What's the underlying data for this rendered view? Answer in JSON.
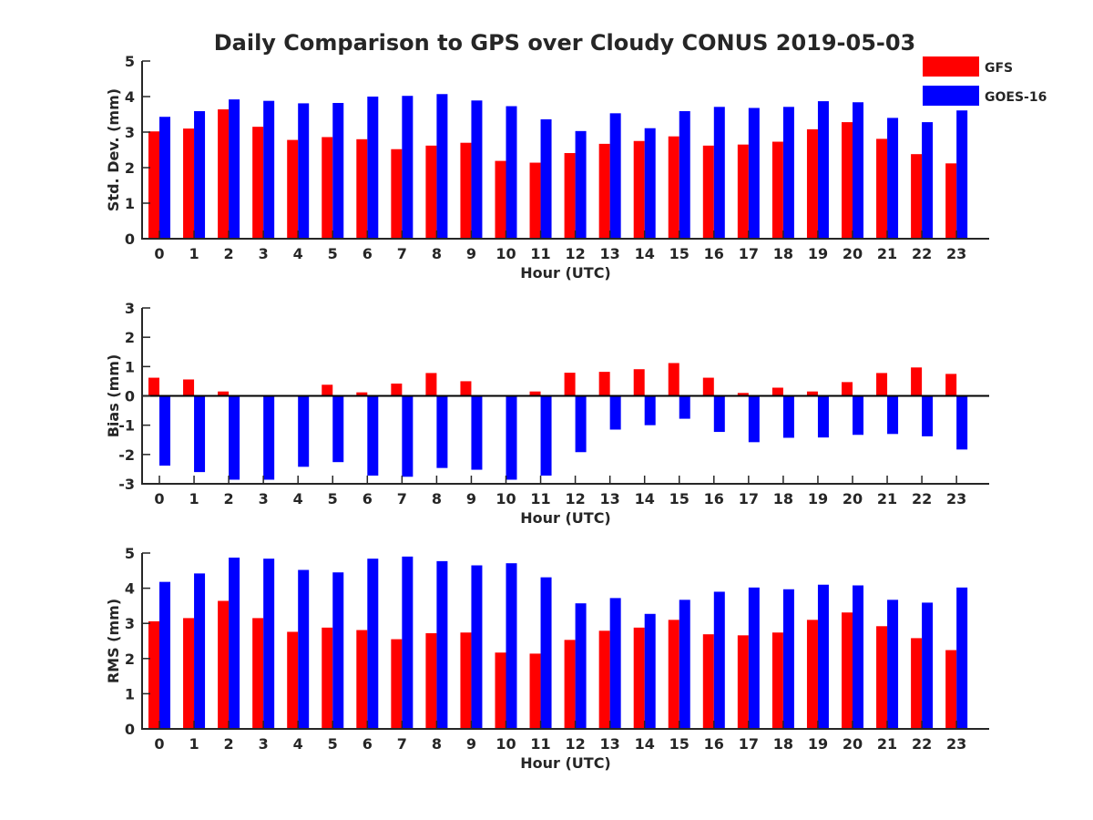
{
  "title": "Daily Comparison to GPS over Cloudy CONUS 2019-05-03",
  "legend": {
    "placement": "top-right",
    "items": [
      {
        "label": "GFS",
        "color": "#ff0000"
      },
      {
        "label": "GOES-16",
        "color": "#0000ff"
      }
    ]
  },
  "chart_data": [
    {
      "type": "bar",
      "xlabel": "Hour (UTC)",
      "ylabel": "Std. Dev. (mm)",
      "ylim": [
        0,
        5
      ],
      "yticks": [
        "0",
        "1",
        "2",
        "3",
        "4",
        "5"
      ],
      "categories": [
        "0",
        "1",
        "2",
        "3",
        "4",
        "5",
        "6",
        "7",
        "8",
        "9",
        "10",
        "11",
        "12",
        "13",
        "14",
        "15",
        "16",
        "17",
        "18",
        "19",
        "20",
        "21",
        "22",
        "23"
      ],
      "series": [
        {
          "name": "GFS",
          "color": "#ff0000",
          "values": [
            3.02,
            3.1,
            3.64,
            3.15,
            2.78,
            2.86,
            2.8,
            2.52,
            2.62,
            2.7,
            2.19,
            2.14,
            2.41,
            2.67,
            2.75,
            2.88,
            2.62,
            2.65,
            2.73,
            3.08,
            3.28,
            2.81,
            2.38,
            2.12
          ]
        },
        {
          "name": "GOES-16",
          "color": "#0000ff",
          "values": [
            3.43,
            3.59,
            3.92,
            3.88,
            3.81,
            3.82,
            4.0,
            4.02,
            4.07,
            3.89,
            3.73,
            3.36,
            3.03,
            3.53,
            3.11,
            3.59,
            3.71,
            3.68,
            3.71,
            3.87,
            3.84,
            3.4,
            3.28,
            3.61
          ]
        }
      ]
    },
    {
      "type": "bar",
      "xlabel": "Hour (UTC)",
      "ylabel": "Bias (mm)",
      "ylim": [
        -3,
        3
      ],
      "yticks": [
        "-3",
        "-2",
        "-1",
        "0",
        "1",
        "2",
        "3"
      ],
      "categories": [
        "0",
        "1",
        "2",
        "3",
        "4",
        "5",
        "6",
        "7",
        "8",
        "9",
        "10",
        "11",
        "12",
        "13",
        "14",
        "15",
        "16",
        "17",
        "18",
        "19",
        "20",
        "21",
        "22",
        "23"
      ],
      "series": [
        {
          "name": "GFS",
          "color": "#ff0000",
          "values": [
            0.62,
            0.56,
            0.15,
            0.0,
            0.0,
            0.38,
            0.12,
            0.42,
            0.78,
            0.5,
            0.0,
            0.15,
            0.79,
            0.82,
            0.91,
            1.12,
            0.62,
            0.1,
            0.28,
            0.15,
            0.47,
            0.78,
            0.97,
            0.75
          ]
        },
        {
          "name": "GOES-16",
          "color": "#0000ff",
          "values": [
            -2.38,
            -2.6,
            -2.86,
            -2.86,
            -2.42,
            -2.26,
            -2.72,
            -2.76,
            -2.46,
            -2.52,
            -2.86,
            -2.72,
            -1.92,
            -1.15,
            -1.0,
            -0.78,
            -1.23,
            -1.58,
            -1.43,
            -1.42,
            -1.33,
            -1.3,
            -1.38,
            -1.83
          ]
        }
      ]
    },
    {
      "type": "bar",
      "xlabel": "Hour (UTC)",
      "ylabel": "RMS (mm)",
      "ylim": [
        0,
        5
      ],
      "yticks": [
        "0",
        "1",
        "2",
        "3",
        "4",
        "5"
      ],
      "categories": [
        "0",
        "1",
        "2",
        "3",
        "4",
        "5",
        "6",
        "7",
        "8",
        "9",
        "10",
        "11",
        "12",
        "13",
        "14",
        "15",
        "16",
        "17",
        "18",
        "19",
        "20",
        "21",
        "22",
        "23"
      ],
      "series": [
        {
          "name": "GFS",
          "color": "#ff0000",
          "values": [
            3.06,
            3.15,
            3.64,
            3.15,
            2.76,
            2.88,
            2.81,
            2.55,
            2.72,
            2.74,
            2.17,
            2.14,
            2.53,
            2.79,
            2.88,
            3.1,
            2.69,
            2.66,
            2.74,
            3.1,
            3.31,
            2.92,
            2.58,
            2.24
          ]
        },
        {
          "name": "GOES-16",
          "color": "#0000ff",
          "values": [
            4.18,
            4.42,
            4.87,
            4.84,
            4.52,
            4.45,
            4.84,
            4.9,
            4.77,
            4.65,
            4.71,
            4.31,
            3.57,
            3.72,
            3.27,
            3.67,
            3.9,
            4.02,
            3.97,
            4.1,
            4.08,
            3.67,
            3.59,
            4.02
          ]
        }
      ]
    }
  ]
}
